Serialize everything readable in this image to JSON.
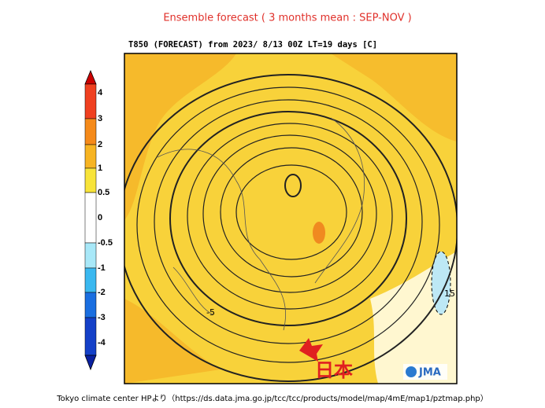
{
  "title": "Ensemble forecast ( 3 months mean : SEP-NOV )",
  "header": "T850 (FORECAST)   from   2023/ 8/13 00Z LT=19 days   [C]",
  "colorbar": {
    "labels": [
      "4",
      "3",
      "2",
      "1",
      "0.5",
      "0",
      "-0.5",
      "-1",
      "-2",
      "-3",
      "-4"
    ]
  },
  "map": {
    "contour_labels": [
      "-5",
      "15"
    ],
    "logo": "JMA"
  },
  "annotation": "日本",
  "caption": "Tokyo climate center HPより（https://ds.data.jma.go.jp/tcc/tcc/products/model/map/4mE/map1/pztmap.php）"
}
